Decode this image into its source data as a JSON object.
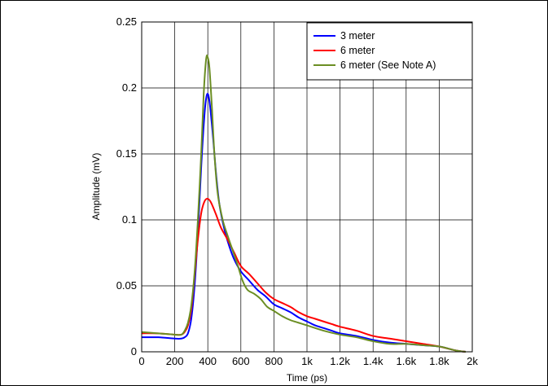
{
  "chart_data": {
    "type": "line",
    "title": "",
    "xlabel": "Time (ps)",
    "ylabel": "Amplitude (mV)",
    "xlim": [
      0,
      2000
    ],
    "ylim": [
      0,
      0.25
    ],
    "grid": true,
    "legend_position": "top-right",
    "x_ticks": [
      {
        "value": 0,
        "label": "0"
      },
      {
        "value": 200,
        "label": "200"
      },
      {
        "value": 400,
        "label": "400"
      },
      {
        "value": 600,
        "label": "600"
      },
      {
        "value": 800,
        "label": "800"
      },
      {
        "value": 1000,
        "label": "1k"
      },
      {
        "value": 1200,
        "label": "1.2k"
      },
      {
        "value": 1400,
        "label": "1.4k"
      },
      {
        "value": 1600,
        "label": "1.6k"
      },
      {
        "value": 1800,
        "label": "1.8k"
      },
      {
        "value": 2000,
        "label": "2k"
      }
    ],
    "y_ticks": [
      {
        "value": 0,
        "label": "0"
      },
      {
        "value": 0.05,
        "label": "0.05"
      },
      {
        "value": 0.1,
        "label": "0.1"
      },
      {
        "value": 0.15,
        "label": "0.15"
      },
      {
        "value": 0.2,
        "label": "0.2"
      },
      {
        "value": 0.25,
        "label": "0.25"
      }
    ],
    "series": [
      {
        "name": "3 meter",
        "color": "#0000ff",
        "points": [
          [
            0,
            0.011
          ],
          [
            100,
            0.011
          ],
          [
            200,
            0.01
          ],
          [
            240,
            0.01
          ],
          [
            260,
            0.011
          ],
          [
            280,
            0.014
          ],
          [
            300,
            0.025
          ],
          [
            320,
            0.05
          ],
          [
            340,
            0.09
          ],
          [
            360,
            0.14
          ],
          [
            380,
            0.18
          ],
          [
            395,
            0.195
          ],
          [
            410,
            0.19
          ],
          [
            430,
            0.165
          ],
          [
            450,
            0.135
          ],
          [
            470,
            0.112
          ],
          [
            500,
            0.093
          ],
          [
            530,
            0.08
          ],
          [
            560,
            0.07
          ],
          [
            600,
            0.061
          ],
          [
            650,
            0.054
          ],
          [
            700,
            0.047
          ],
          [
            750,
            0.042
          ],
          [
            800,
            0.036
          ],
          [
            850,
            0.033
          ],
          [
            900,
            0.03
          ],
          [
            950,
            0.026
          ],
          [
            1000,
            0.023
          ],
          [
            1050,
            0.02
          ],
          [
            1100,
            0.018
          ],
          [
            1150,
            0.016
          ],
          [
            1200,
            0.014
          ],
          [
            1300,
            0.012
          ],
          [
            1400,
            0.009
          ],
          [
            1500,
            0.007
          ],
          [
            1600,
            0.006
          ],
          [
            1700,
            0.005
          ],
          [
            1800,
            0.004
          ],
          [
            1900,
            0.001
          ],
          [
            1960,
            0.0
          ]
        ]
      },
      {
        "name": "6 meter",
        "color": "#ff0000",
        "points": [
          [
            0,
            0.014
          ],
          [
            100,
            0.014
          ],
          [
            200,
            0.013
          ],
          [
            240,
            0.013
          ],
          [
            260,
            0.015
          ],
          [
            280,
            0.02
          ],
          [
            300,
            0.032
          ],
          [
            320,
            0.058
          ],
          [
            340,
            0.085
          ],
          [
            360,
            0.105
          ],
          [
            380,
            0.114
          ],
          [
            400,
            0.116
          ],
          [
            420,
            0.113
          ],
          [
            450,
            0.104
          ],
          [
            480,
            0.094
          ],
          [
            520,
            0.085
          ],
          [
            560,
            0.075
          ],
          [
            600,
            0.065
          ],
          [
            650,
            0.059
          ],
          [
            700,
            0.052
          ],
          [
            750,
            0.045
          ],
          [
            800,
            0.04
          ],
          [
            850,
            0.037
          ],
          [
            900,
            0.034
          ],
          [
            950,
            0.03
          ],
          [
            1000,
            0.027
          ],
          [
            1050,
            0.025
          ],
          [
            1100,
            0.023
          ],
          [
            1150,
            0.021
          ],
          [
            1200,
            0.019
          ],
          [
            1300,
            0.016
          ],
          [
            1400,
            0.012
          ],
          [
            1500,
            0.01
          ],
          [
            1600,
            0.008
          ],
          [
            1700,
            0.006
          ],
          [
            1800,
            0.004
          ],
          [
            1900,
            0.001
          ],
          [
            1960,
            0.0
          ]
        ]
      },
      {
        "name": "6 meter (See Note A)",
        "color": "#6b8e23",
        "points": [
          [
            0,
            0.015
          ],
          [
            100,
            0.014
          ],
          [
            200,
            0.013
          ],
          [
            240,
            0.013
          ],
          [
            260,
            0.016
          ],
          [
            280,
            0.022
          ],
          [
            300,
            0.035
          ],
          [
            320,
            0.06
          ],
          [
            340,
            0.1
          ],
          [
            360,
            0.15
          ],
          [
            375,
            0.195
          ],
          [
            390,
            0.222
          ],
          [
            400,
            0.223
          ],
          [
            410,
            0.215
          ],
          [
            425,
            0.185
          ],
          [
            440,
            0.15
          ],
          [
            460,
            0.12
          ],
          [
            490,
            0.1
          ],
          [
            520,
            0.088
          ],
          [
            550,
            0.077
          ],
          [
            580,
            0.066
          ],
          [
            610,
            0.054
          ],
          [
            640,
            0.047
          ],
          [
            680,
            0.044
          ],
          [
            720,
            0.04
          ],
          [
            760,
            0.034
          ],
          [
            800,
            0.031
          ],
          [
            850,
            0.027
          ],
          [
            900,
            0.024
          ],
          [
            950,
            0.022
          ],
          [
            1000,
            0.02
          ],
          [
            1100,
            0.016
          ],
          [
            1200,
            0.013
          ],
          [
            1300,
            0.011
          ],
          [
            1400,
            0.008
          ],
          [
            1500,
            0.006
          ],
          [
            1600,
            0.006
          ],
          [
            1700,
            0.005
          ],
          [
            1800,
            0.004
          ],
          [
            1900,
            0.001
          ],
          [
            1960,
            0.0
          ]
        ]
      }
    ]
  }
}
